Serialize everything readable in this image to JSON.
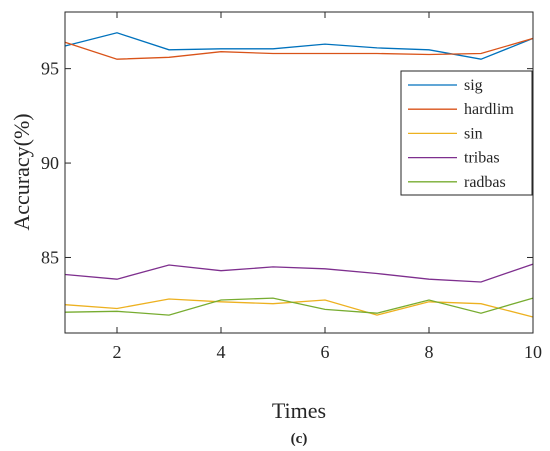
{
  "chart_data": {
    "type": "line",
    "x": [
      1,
      2,
      3,
      4,
      5,
      6,
      7,
      8,
      9,
      10
    ],
    "xlabel": "Times",
    "ylabel": "Accuracy(%)",
    "xlim": [
      1,
      10
    ],
    "ylim": [
      81,
      98
    ],
    "xticks": [
      2,
      4,
      6,
      8,
      10
    ],
    "yticks": [
      85,
      90,
      95
    ],
    "grid": false,
    "legend_position": "top-right",
    "series": [
      {
        "name": "sig",
        "color": "#0072BD",
        "values": [
          96.2,
          96.9,
          96.0,
          96.05,
          96.05,
          96.3,
          96.1,
          96.0,
          95.5,
          96.6
        ]
      },
      {
        "name": "hardlim",
        "color": "#D95319",
        "values": [
          96.4,
          95.5,
          95.6,
          95.9,
          95.8,
          95.8,
          95.8,
          95.75,
          95.8,
          96.6
        ]
      },
      {
        "name": "sin",
        "color": "#EDB120",
        "values": [
          82.5,
          82.3,
          82.8,
          82.65,
          82.55,
          82.75,
          81.95,
          82.65,
          82.55,
          81.85
        ]
      },
      {
        "name": "tribas",
        "color": "#7E2F8E",
        "values": [
          84.1,
          83.85,
          84.6,
          84.3,
          84.5,
          84.4,
          84.15,
          83.85,
          83.7,
          84.65
        ]
      },
      {
        "name": "radbas",
        "color": "#77AC30",
        "values": [
          82.1,
          82.15,
          81.95,
          82.75,
          82.85,
          82.25,
          82.05,
          82.75,
          82.05,
          82.85
        ]
      }
    ]
  },
  "caption": "(c)"
}
